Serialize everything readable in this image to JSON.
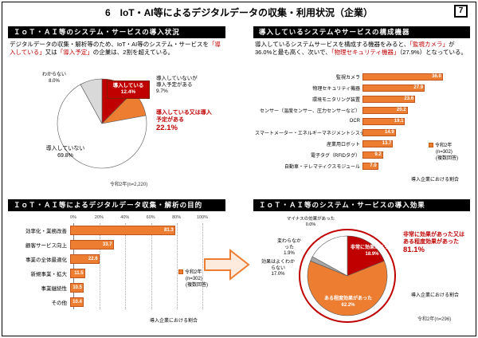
{
  "page": {
    "title": "6　IoT・AI等によるデジタルデータの収集・利用状況（企業）",
    "page_number": "7"
  },
  "sections": {
    "adoption": {
      "header": "ＩｏＴ・ＡＩ等のシステム・サービスの導入状況",
      "body": {
        "s0": "デジタルデータの収集・解析等のため、IoT・AI等のシステム・サービスを",
        "s1": "「導入している」",
        "s2": "又は",
        "s3": "「導入予定」",
        "s4": "の企業は、2割を超えている。"
      }
    },
    "devices": {
      "header": "導入しているシステムやサービスの構成機器",
      "body": {
        "s0": "導入しているシステムサービスを構成する機器をみると、",
        "s1": "「監視カメラ」",
        "s2": "が36.0%と最も高く、次いで、",
        "s3": "「物理セキュリティ機器」",
        "s4": "（27.9%）となっている。"
      }
    },
    "purpose": {
      "header": "ＩｏＴ・ＡＩ等によるデジタルデータ収集・解析の目的"
    },
    "effect": {
      "header": "ＩｏＴ・ＡＩ等のシステム・サービスの導入効果"
    }
  },
  "chart_data": [
    {
      "id": "adoption-pie",
      "type": "pie",
      "slices": [
        {
          "label": "導入している",
          "value": 12.4,
          "display": "12.4%",
          "color": "#C00000"
        },
        {
          "label": "導入していないが導入予定がある",
          "value": 9.7,
          "display": "9.7%",
          "color": "#ED7D31"
        },
        {
          "label": "導入していない",
          "value": 69.8,
          "display": "69.8%",
          "color": "#FFFFFF"
        },
        {
          "label": "わからない",
          "value": 8.0,
          "display": "8.0%",
          "color": "#D9D9D9"
        }
      ],
      "annotation": {
        "label": "導入している又は導入予定がある",
        "value": "22.1%"
      },
      "caption": "令和2年(n=2,220)"
    },
    {
      "id": "devices-bar",
      "type": "bar",
      "orientation": "horizontal",
      "categories": [
        "監視カメラ",
        "物理セキュリティ機器",
        "環境モニタリング装置",
        "センサー（温度センサー、圧力センサーなど）",
        "OCR",
        "スマートメーター・エネルギーマネジメントシステム",
        "産業用ロボット",
        "電子タグ（RFIDタグ）",
        "自動車・テレマティクスモジュール"
      ],
      "values": [
        36.0,
        27.9,
        23.6,
        20.2,
        19.1,
        14.9,
        13.7,
        9.2,
        7.0
      ],
      "xmax": 40,
      "bar_color": "#ED7D31",
      "legend": {
        "swatch_color": "#ED7D31",
        "label": "令和2年",
        "n": "(n=302)",
        "note": "(複数回答)"
      },
      "footnote": "導入企業における割合"
    },
    {
      "id": "purpose-bar",
      "type": "bar",
      "orientation": "horizontal",
      "categories": [
        "効率化・業務改善",
        "顧客サービス向上",
        "事業の全体最適化",
        "新規事業・拡大",
        "事業継続性",
        "その他"
      ],
      "values": [
        81.3,
        33.7,
        22.6,
        11.5,
        10.5,
        10.4
      ],
      "xmax": 100,
      "ticks": [
        "0%",
        "20%",
        "40%",
        "60%",
        "80%",
        "100%"
      ],
      "bar_color": "#ED7D31",
      "legend": {
        "swatch_color": "#ED7D31",
        "label": "令和2年",
        "n": "(n=302)",
        "note": "(複数回答)"
      },
      "footnote": "導入企業における割合"
    },
    {
      "id": "effect-pie",
      "type": "pie",
      "slices": [
        {
          "label": "非常に効果があった",
          "value": 18.9,
          "display": "18.9%",
          "color": "#C00000"
        },
        {
          "label": "ある程度効果があった",
          "value": 62.2,
          "display": "62.2%",
          "color": "#ED7D31"
        },
        {
          "label": "変わらなかった",
          "value": 1.9,
          "display": "1.9%",
          "color": "#A6A6A6"
        },
        {
          "label": "マイナスの効果があった",
          "value": 0.0,
          "display": "0.0%",
          "color": "#808080"
        },
        {
          "label": "効果はよくわからない",
          "value": 17.0,
          "display": "17.0%",
          "color": "#FFFFFF"
        }
      ],
      "annotation": {
        "label": "非常に効果があった又はある程度効果があった",
        "value": "81.1%"
      },
      "highlight_outline": "#C00000",
      "caption": "令和2年(n=296)",
      "footnote": "導入企業における割合"
    }
  ]
}
